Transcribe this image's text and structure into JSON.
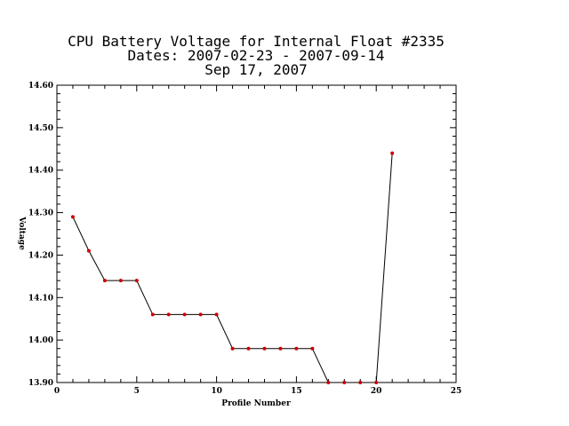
{
  "chart_data": {
    "type": "line",
    "title_lines": [
      "CPU Battery Voltage for Internal Float #2335",
      "Dates:  2007-02-23 -  2007-09-14",
      "Sep 17, 2007"
    ],
    "xlabel": "Profile Number",
    "ylabel": "Voltage",
    "xlim": [
      0,
      25
    ],
    "ylim": [
      13.9,
      14.6
    ],
    "x_ticks": [
      0,
      5,
      10,
      15,
      20,
      25
    ],
    "y_ticks": [
      13.9,
      14.0,
      14.1,
      14.2,
      14.3,
      14.4,
      14.5,
      14.6
    ],
    "x_tick_labels": [
      "0",
      "5",
      "10",
      "15",
      "20",
      "25"
    ],
    "y_tick_labels": [
      "13.90",
      "14.00",
      "14.10",
      "14.20",
      "14.30",
      "14.40",
      "14.50",
      "14.60"
    ],
    "series": [
      {
        "x": [
          1,
          2,
          3,
          4,
          5,
          6,
          7,
          8,
          9,
          10,
          11,
          12,
          13,
          14,
          15,
          16,
          17,
          18,
          19,
          20,
          21
        ],
        "y": [
          14.29,
          14.21,
          14.14,
          14.14,
          14.14,
          14.06,
          14.06,
          14.06,
          14.06,
          14.06,
          13.98,
          13.98,
          13.98,
          13.98,
          13.98,
          13.98,
          13.9,
          13.9,
          13.9,
          13.9,
          14.44
        ]
      }
    ],
    "line_color": "#000000",
    "marker_color": "#cc0000",
    "grid": false
  }
}
